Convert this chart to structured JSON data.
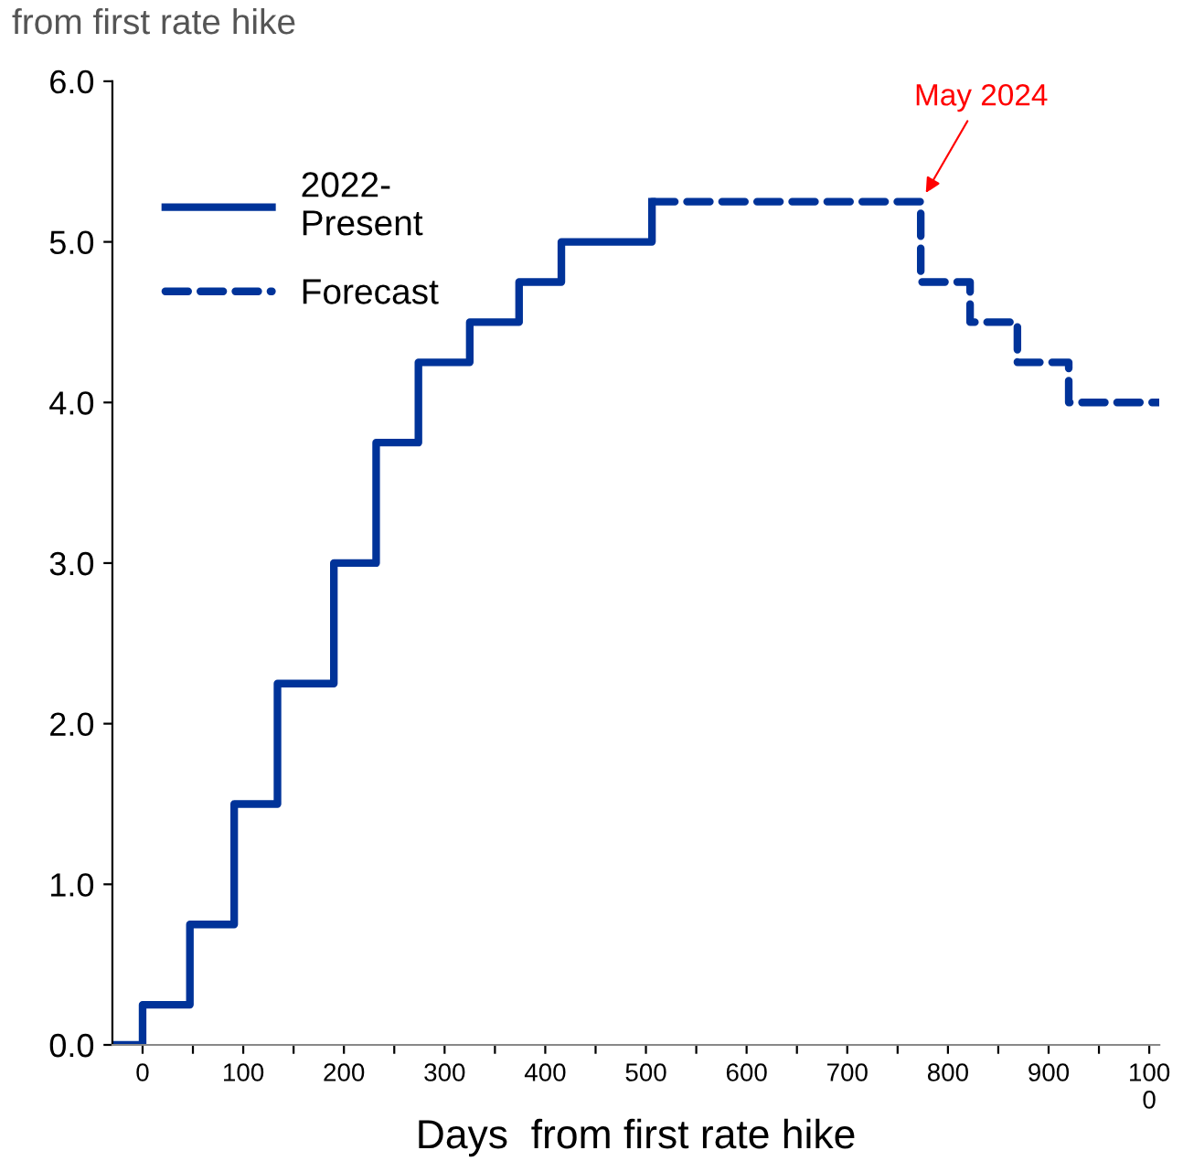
{
  "chart_data": {
    "type": "step",
    "title": "from first rate hike",
    "xlabel": "Days  from first rate hike",
    "series": [
      {
        "name": "2022-\nPresent",
        "color": "#003399",
        "line_style": "solid",
        "x": [
          -30,
          0,
          47,
          91,
          134,
          190,
          232,
          274,
          325,
          374,
          416,
          506
        ],
        "values": [
          0,
          0.25,
          0.75,
          1.5,
          2.25,
          3.0,
          3.75,
          4.25,
          4.5,
          4.75,
          5.0,
          5.25
        ]
      },
      {
        "name": "Forecast",
        "color": "#003399",
        "line_style": "dashed",
        "x": [
          506,
          773,
          822,
          869,
          920,
          1010
        ],
        "values": [
          5.25,
          4.75,
          4.5,
          4.25,
          4.0,
          4.0
        ]
      }
    ],
    "annotations": [
      {
        "text": "May 2024",
        "x": 773,
        "y": 5.25
      }
    ],
    "xlim": [
      -30,
      1010
    ],
    "ylim": [
      0,
      6
    ],
    "xticks": [
      0,
      {
        "value": 50,
        "label": null
      },
      100,
      {
        "value": 150,
        "label": null
      },
      200,
      {
        "value": 250,
        "label": null
      },
      300,
      {
        "value": 350,
        "label": null
      },
      400,
      {
        "value": 450,
        "label": null
      },
      500,
      {
        "value": 550,
        "label": null
      },
      600,
      {
        "value": 650,
        "label": null
      },
      700,
      {
        "value": 750,
        "label": null
      },
      800,
      {
        "value": 850,
        "label": null
      },
      900,
      {
        "value": 950,
        "label": null
      },
      {
        "value": 1000,
        "label": "100\n0"
      }
    ],
    "yticks": [
      {
        "value": 0,
        "label": "0.0"
      },
      {
        "value": 1,
        "label": "1.0"
      },
      {
        "value": 2,
        "label": "2.0"
      },
      {
        "value": 3,
        "label": "3.0"
      },
      {
        "value": 4,
        "label": "4.0"
      },
      {
        "value": 5,
        "label": "5.0"
      },
      {
        "value": 6,
        "label": "6.0"
      }
    ],
    "legend": "top left",
    "grid": false
  }
}
